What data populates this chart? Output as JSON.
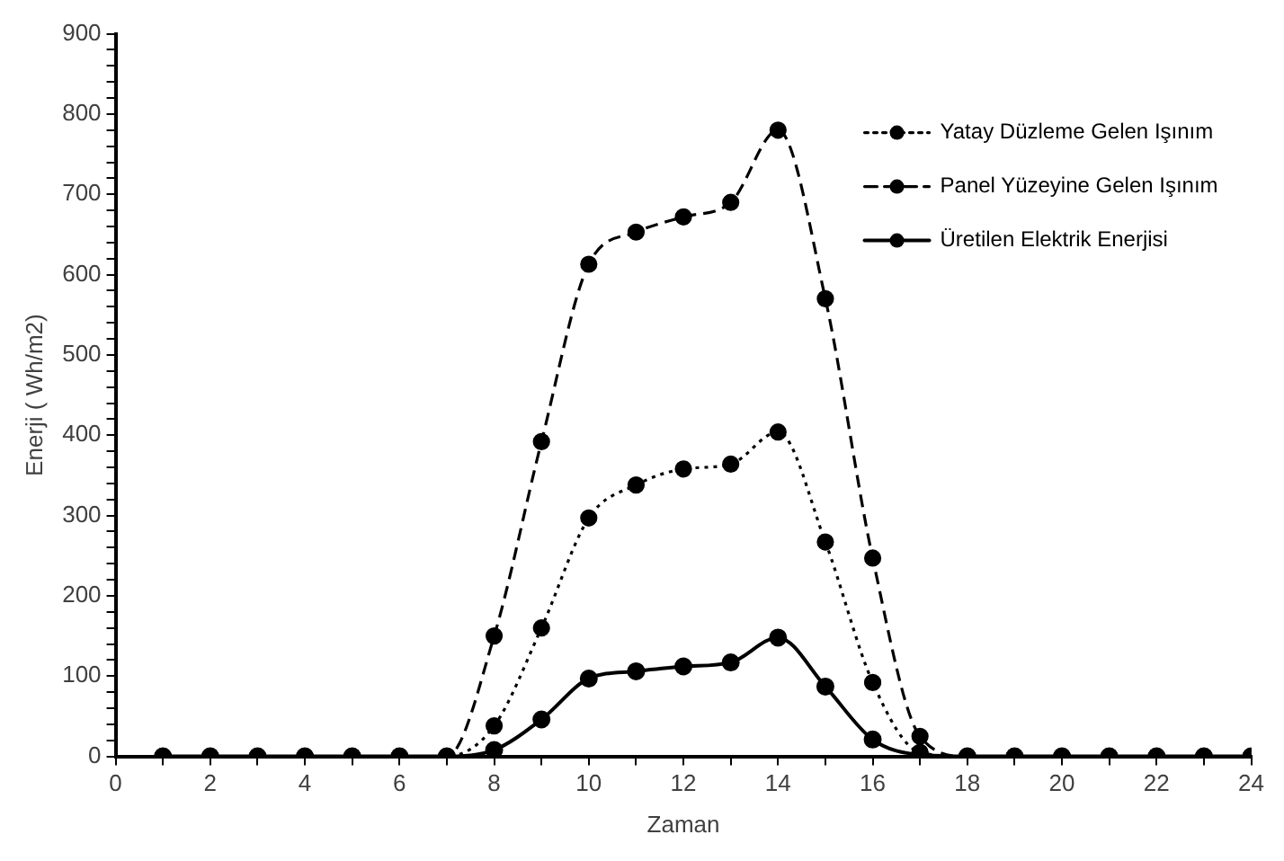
{
  "chart_data": {
    "type": "line",
    "xlabel": "Zaman",
    "ylabel": "Enerji ( Wh/m2)",
    "x": [
      1,
      2,
      3,
      4,
      5,
      6,
      7,
      8,
      9,
      10,
      11,
      12,
      13,
      14,
      15,
      16,
      17,
      18,
      19,
      20,
      21,
      22,
      23,
      24
    ],
    "series": [
      {
        "name": "Yatay Düzleme Gelen Işınım",
        "color": "#000000",
        "line_style": "dotted",
        "values": [
          0,
          0,
          0,
          0,
          0,
          0,
          0,
          38,
          160,
          297,
          338,
          358,
          364,
          404,
          267,
          92,
          5,
          0,
          0,
          0,
          0,
          0,
          0,
          0
        ]
      },
      {
        "name": "Panel Yüzeyine Gelen Işınım",
        "color": "#000000",
        "line_style": "dashed",
        "values": [
          0,
          0,
          0,
          0,
          0,
          0,
          0,
          150,
          392,
          613,
          653,
          672,
          690,
          780,
          570,
          247,
          25,
          0,
          0,
          0,
          0,
          0,
          0,
          0
        ]
      },
      {
        "name": "Üretilen Elektrik Enerjisi",
        "color": "#000000",
        "line_style": "solid",
        "values": [
          0,
          0,
          0,
          0,
          0,
          0,
          0,
          8,
          46,
          97,
          106,
          112,
          117,
          148,
          87,
          21,
          2,
          0,
          0,
          0,
          0,
          0,
          0,
          0
        ]
      }
    ],
    "xlim": [
      0,
      24
    ],
    "xticks": [
      0,
      {
        "value": 1,
        "label": null
      },
      2,
      {
        "value": 3,
        "label": null
      },
      4,
      {
        "value": 5,
        "label": null
      },
      6,
      {
        "value": 7,
        "label": null
      },
      8,
      {
        "value": 9,
        "label": null
      },
      10,
      {
        "value": 11,
        "label": null
      },
      12,
      {
        "value": 13,
        "label": null
      },
      14,
      {
        "value": 15,
        "label": null
      },
      16,
      {
        "value": 17,
        "label": null
      },
      18,
      {
        "value": 19,
        "label": null
      },
      20,
      {
        "value": 21,
        "label": null
      },
      22,
      {
        "value": 23,
        "label": null
      },
      24
    ],
    "ylim": [
      0,
      900
    ],
    "yticks": [
      0,
      {
        "value": 20,
        "label": null
      },
      {
        "value": 40,
        "label": null
      },
      {
        "value": 60,
        "label": null
      },
      {
        "value": 80,
        "label": null
      },
      100,
      {
        "value": 120,
        "label": null
      },
      {
        "value": 140,
        "label": null
      },
      {
        "value": 160,
        "label": null
      },
      {
        "value": 180,
        "label": null
      },
      200,
      {
        "value": 220,
        "label": null
      },
      {
        "value": 240,
        "label": null
      },
      {
        "value": 260,
        "label": null
      },
      {
        "value": 280,
        "label": null
      },
      300,
      {
        "value": 320,
        "label": null
      },
      {
        "value": 340,
        "label": null
      },
      {
        "value": 360,
        "label": null
      },
      {
        "value": 380,
        "label": null
      },
      400,
      {
        "value": 420,
        "label": null
      },
      {
        "value": 440,
        "label": null
      },
      {
        "value": 460,
        "label": null
      },
      {
        "value": 480,
        "label": null
      },
      500,
      {
        "value": 520,
        "label": null
      },
      {
        "value": 540,
        "label": null
      },
      {
        "value": 560,
        "label": null
      },
      {
        "value": 580,
        "label": null
      },
      600,
      {
        "value": 620,
        "label": null
      },
      {
        "value": 640,
        "label": null
      },
      {
        "value": 660,
        "label": null
      },
      {
        "value": 680,
        "label": null
      },
      700,
      {
        "value": 720,
        "label": null
      },
      {
        "value": 740,
        "label": null
      },
      {
        "value": 760,
        "label": null
      },
      {
        "value": 780,
        "label": null
      },
      800,
      {
        "value": 820,
        "label": null
      },
      {
        "value": 840,
        "label": null
      },
      {
        "value": 860,
        "label": null
      },
      {
        "value": 880,
        "label": null
      },
      900
    ],
    "grid": false,
    "legend": "right",
    "marker": "circle"
  }
}
